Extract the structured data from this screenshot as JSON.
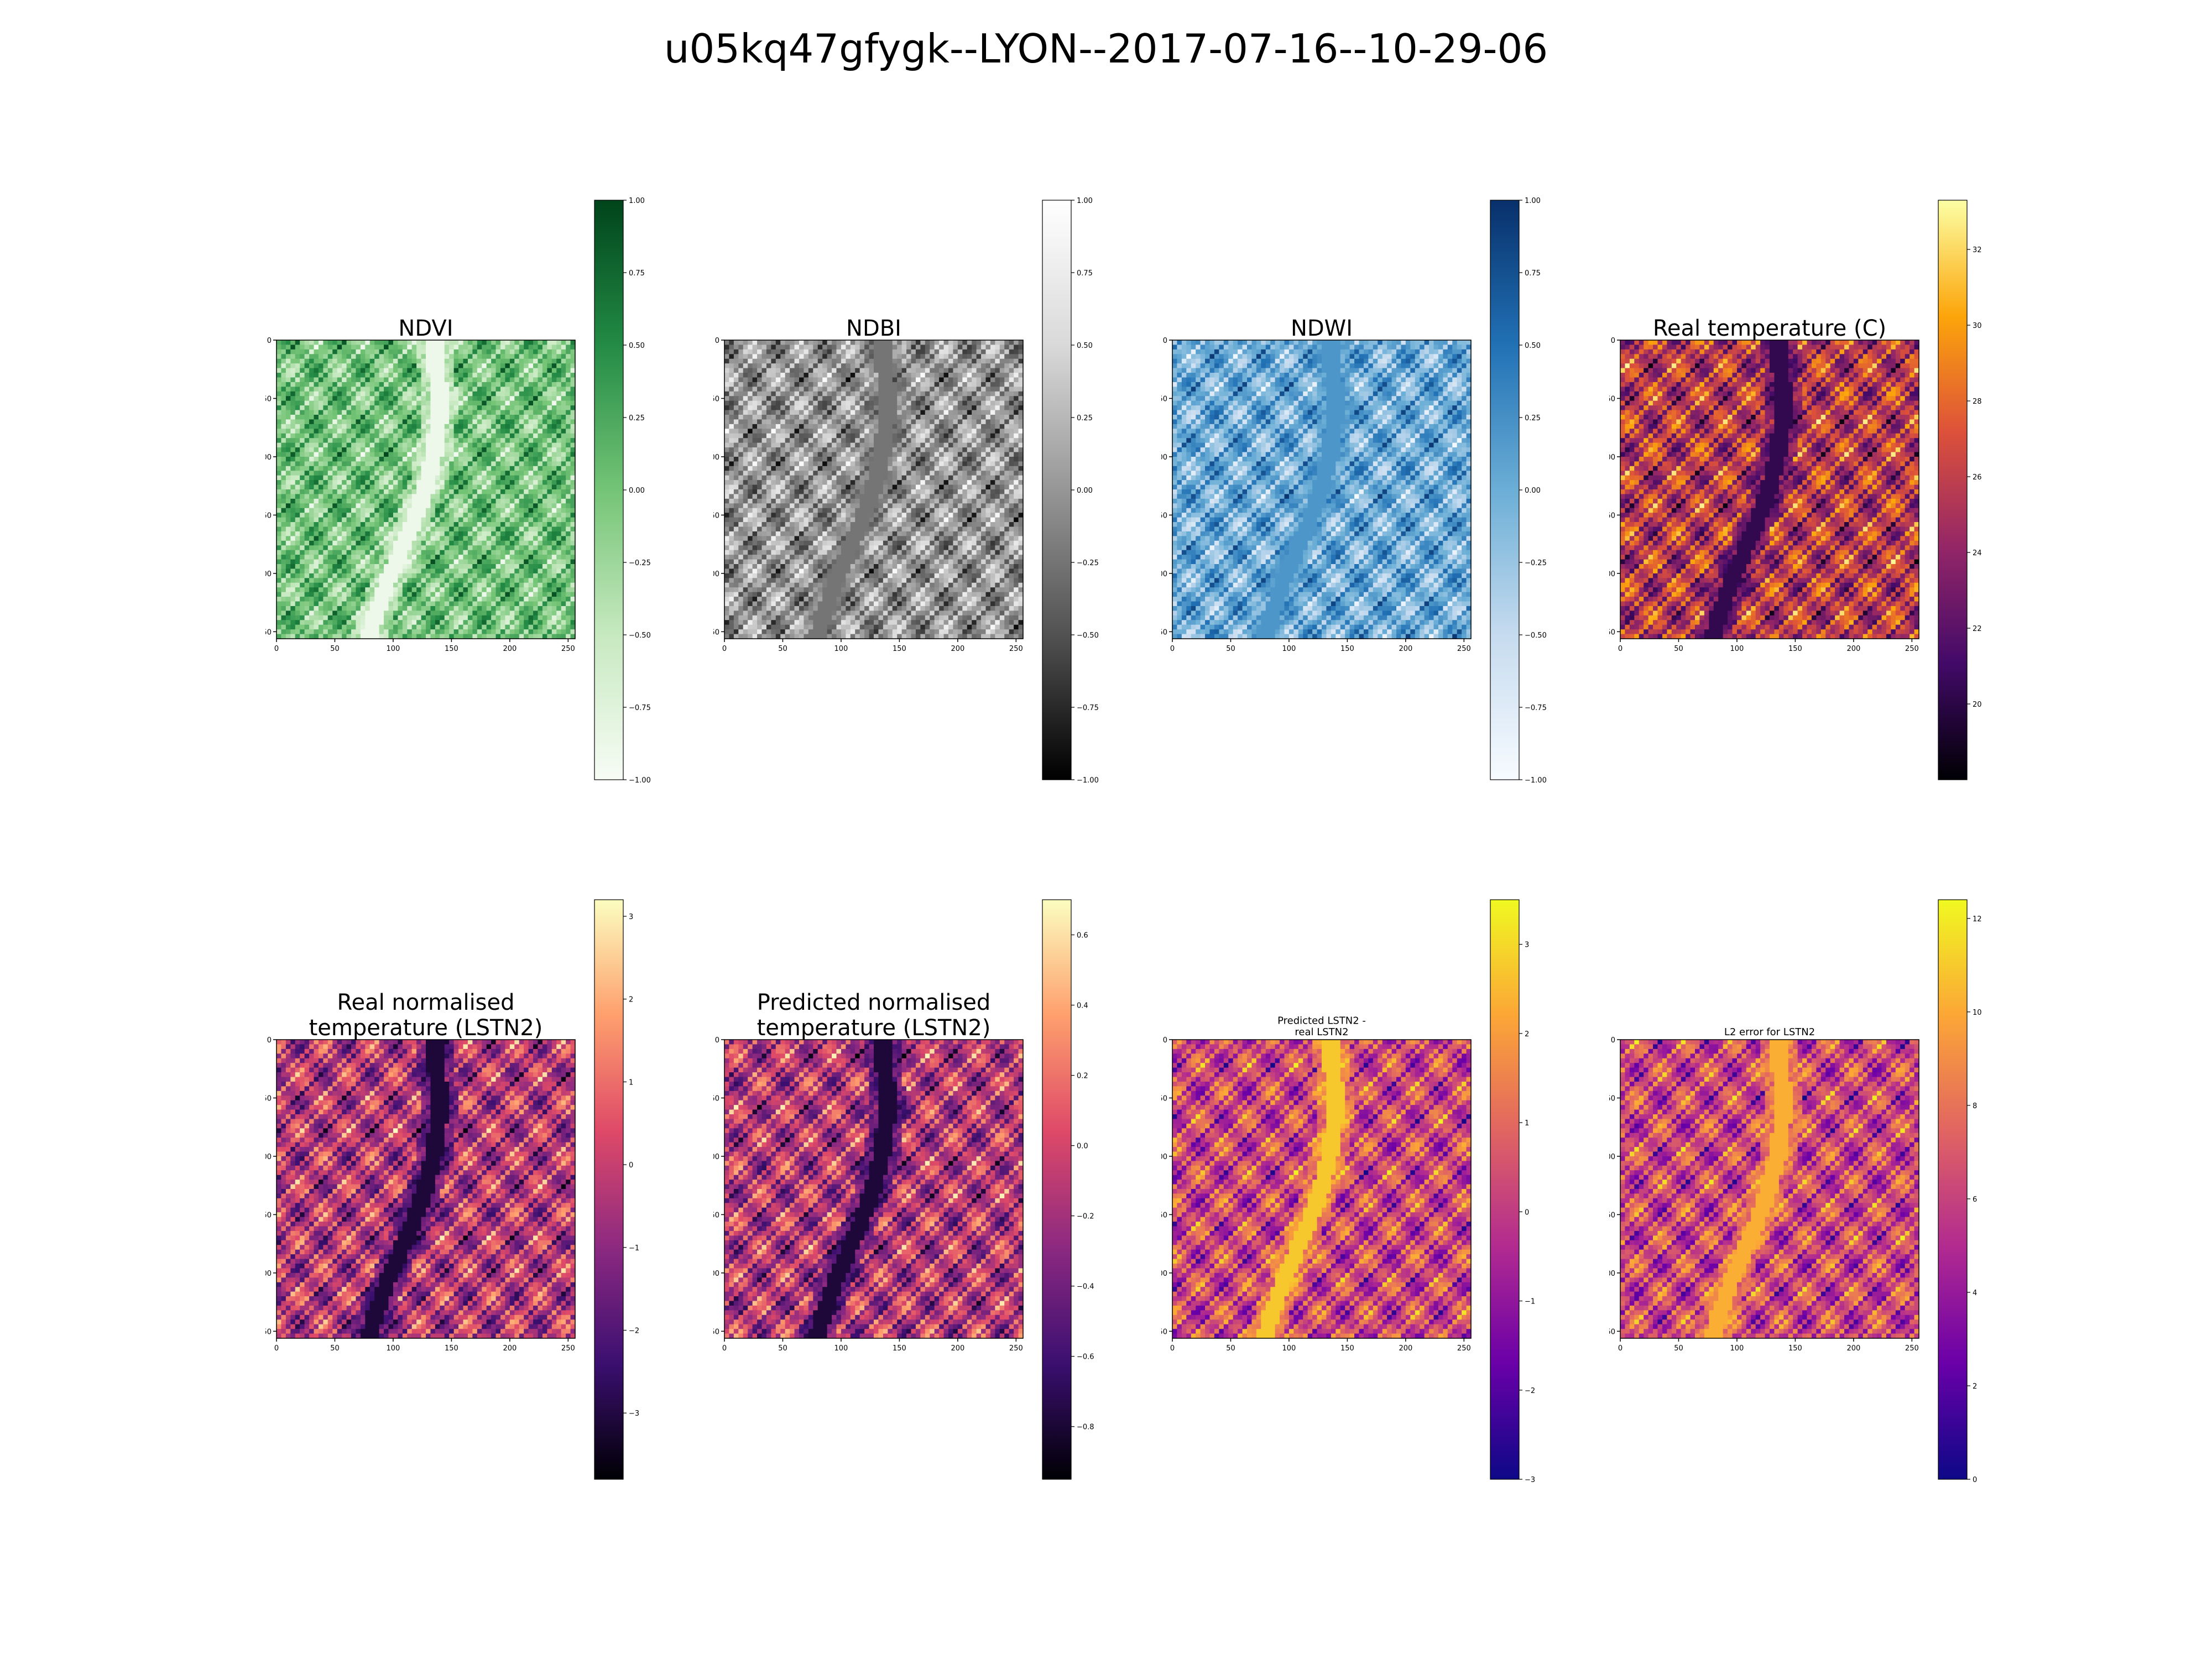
{
  "figure": {
    "title": "u05kq47gfygk--LYON--2017-07-16--10-29-06"
  },
  "colormaps": {
    "Greens": [
      "#f7fcf5",
      "#c7e9c0",
      "#74c476",
      "#238b45",
      "#00441b"
    ],
    "Greys": [
      "#000000",
      "#525252",
      "#969696",
      "#d9d9d9",
      "#ffffff"
    ],
    "Blues": [
      "#f7fbff",
      "#c6dbef",
      "#6baed6",
      "#2171b5",
      "#08306b"
    ],
    "inferno": [
      "#000004",
      "#420a68",
      "#932667",
      "#dd513a",
      "#fca50a",
      "#fcffa4"
    ],
    "magma": [
      "#000004",
      "#3b0f70",
      "#8c2981",
      "#de4968",
      "#fe9f6d",
      "#fcfdbf"
    ],
    "plasma": [
      "#0d0887",
      "#6a00a8",
      "#b12a90",
      "#e16462",
      "#fca636",
      "#f0f921"
    ]
  },
  "chart_data": [
    {
      "type": "heatmap",
      "title": "NDVI",
      "cmap": "Greens",
      "xlim": [
        0,
        256
      ],
      "ylim": [
        256,
        0
      ],
      "xticks": [
        "0",
        "50",
        "100",
        "150",
        "200",
        "250"
      ],
      "yticks": [
        "0",
        "50",
        "100",
        "150",
        "200",
        "250"
      ],
      "colorbar": {
        "range": [
          -1.0,
          1.0
        ],
        "ticks": [
          -1.0,
          -0.75,
          -0.5,
          -0.25,
          0.0,
          0.25,
          0.5,
          0.75,
          1.0
        ],
        "labels": [
          "−1.00",
          "−0.75",
          "−0.50",
          "−0.25",
          "0.00",
          "0.25",
          "0.50",
          "0.75",
          "1.00"
        ]
      },
      "river_level": 0.05
    },
    {
      "type": "heatmap",
      "title": "NDBI",
      "cmap": "Greys",
      "xlim": [
        0,
        256
      ],
      "ylim": [
        256,
        0
      ],
      "xticks": [
        "0",
        "50",
        "100",
        "150",
        "200",
        "250"
      ],
      "yticks": [
        "0",
        "50",
        "100",
        "150",
        "200",
        "250"
      ],
      "colorbar": {
        "range": [
          -1.0,
          1.0
        ],
        "ticks": [
          -1.0,
          -0.75,
          -0.5,
          -0.25,
          0.0,
          0.25,
          0.5,
          0.75,
          1.0
        ],
        "labels": [
          "−1.00",
          "−0.75",
          "−0.50",
          "−0.25",
          "0.00",
          "0.25",
          "0.50",
          "0.75",
          "1.00"
        ]
      },
      "river_level": 0.38
    },
    {
      "type": "heatmap",
      "title": "NDWI",
      "cmap": "Blues",
      "xlim": [
        0,
        256
      ],
      "ylim": [
        256,
        0
      ],
      "xticks": [
        "0",
        "50",
        "100",
        "150",
        "200",
        "250"
      ],
      "yticks": [
        "0",
        "50",
        "100",
        "150",
        "200",
        "250"
      ],
      "colorbar": {
        "range": [
          -1.0,
          1.0
        ],
        "ticks": [
          -1.0,
          -0.75,
          -0.5,
          -0.25,
          0.0,
          0.25,
          0.5,
          0.75,
          1.0
        ],
        "labels": [
          "−1.00",
          "−0.75",
          "−0.50",
          "−0.25",
          "0.00",
          "0.25",
          "0.50",
          "0.75",
          "1.00"
        ]
      },
      "river_level": 0.6
    },
    {
      "type": "heatmap",
      "title": "Real temperature (C)",
      "cmap": "inferno",
      "xlim": [
        0,
        256
      ],
      "ylim": [
        256,
        0
      ],
      "xticks": [
        "0",
        "50",
        "100",
        "150",
        "200",
        "250"
      ],
      "yticks": [
        "0",
        "50",
        "100",
        "150",
        "200",
        "250"
      ],
      "colorbar": {
        "range": [
          18.0,
          33.3
        ],
        "ticks": [
          20,
          22,
          24,
          26,
          28,
          30,
          32
        ],
        "labels": [
          "20",
          "22",
          "24",
          "26",
          "28",
          "30",
          "32"
        ]
      },
      "river_level": 0.15
    },
    {
      "type": "heatmap",
      "title": "Real normalised\ntemperature (LSTN2)",
      "cmap": "magma",
      "xlim": [
        0,
        256
      ],
      "ylim": [
        256,
        0
      ],
      "xticks": [
        "0",
        "50",
        "100",
        "150",
        "200",
        "250"
      ],
      "yticks": [
        "0",
        "50",
        "100",
        "150",
        "200",
        "250"
      ],
      "colorbar": {
        "range": [
          -3.8,
          3.2
        ],
        "ticks": [
          -3,
          -2,
          -1,
          0,
          1,
          2,
          3
        ],
        "labels": [
          "−3",
          "−2",
          "−1",
          "0",
          "1",
          "2",
          "3"
        ]
      },
      "river_level": 0.1
    },
    {
      "type": "heatmap",
      "title": "Predicted normalised\ntemperature (LSTN2)",
      "cmap": "magma",
      "xlim": [
        0,
        256
      ],
      "ylim": [
        256,
        0
      ],
      "xticks": [
        "0",
        "50",
        "100",
        "150",
        "200",
        "250"
      ],
      "yticks": [
        "0",
        "50",
        "100",
        "150",
        "200",
        "250"
      ],
      "colorbar": {
        "range": [
          -0.95,
          0.7
        ],
        "ticks": [
          -0.8,
          -0.6,
          -0.4,
          -0.2,
          0.0,
          0.2,
          0.4,
          0.6
        ],
        "labels": [
          "−0.8",
          "−0.6",
          "−0.4",
          "−0.2",
          "0.0",
          "0.2",
          "0.4",
          "0.6"
        ]
      },
      "river_level": 0.1
    },
    {
      "type": "heatmap",
      "title": "Predicted LSTN2 -\nreal LSTN2",
      "cmap": "plasma",
      "xlim": [
        0,
        256
      ],
      "ylim": [
        256,
        0
      ],
      "xticks": [
        "0",
        "50",
        "100",
        "150",
        "200",
        "250"
      ],
      "yticks": [
        "0",
        "50",
        "100",
        "150",
        "200",
        "250"
      ],
      "colorbar": {
        "range": [
          -3.0,
          3.5
        ],
        "ticks": [
          -3,
          -2,
          -1,
          0,
          1,
          2,
          3
        ],
        "labels": [
          "−3",
          "−2",
          "−1",
          "0",
          "1",
          "2",
          "3"
        ]
      },
      "river_level": 0.88
    },
    {
      "type": "heatmap",
      "title": "L2 error for LSTN2",
      "cmap": "plasma",
      "xlim": [
        0,
        256
      ],
      "ylim": [
        256,
        0
      ],
      "xticks": [
        "0",
        "50",
        "100",
        "150",
        "200",
        "250"
      ],
      "yticks": [
        "0",
        "50",
        "100",
        "150",
        "200",
        "250"
      ],
      "colorbar": {
        "range": [
          0,
          12.4
        ],
        "ticks": [
          0,
          2,
          4,
          6,
          8,
          10,
          12
        ],
        "labels": [
          "0",
          "2",
          "4",
          "6",
          "8",
          "10",
          "12"
        ]
      },
      "river_level": 0.82
    }
  ]
}
